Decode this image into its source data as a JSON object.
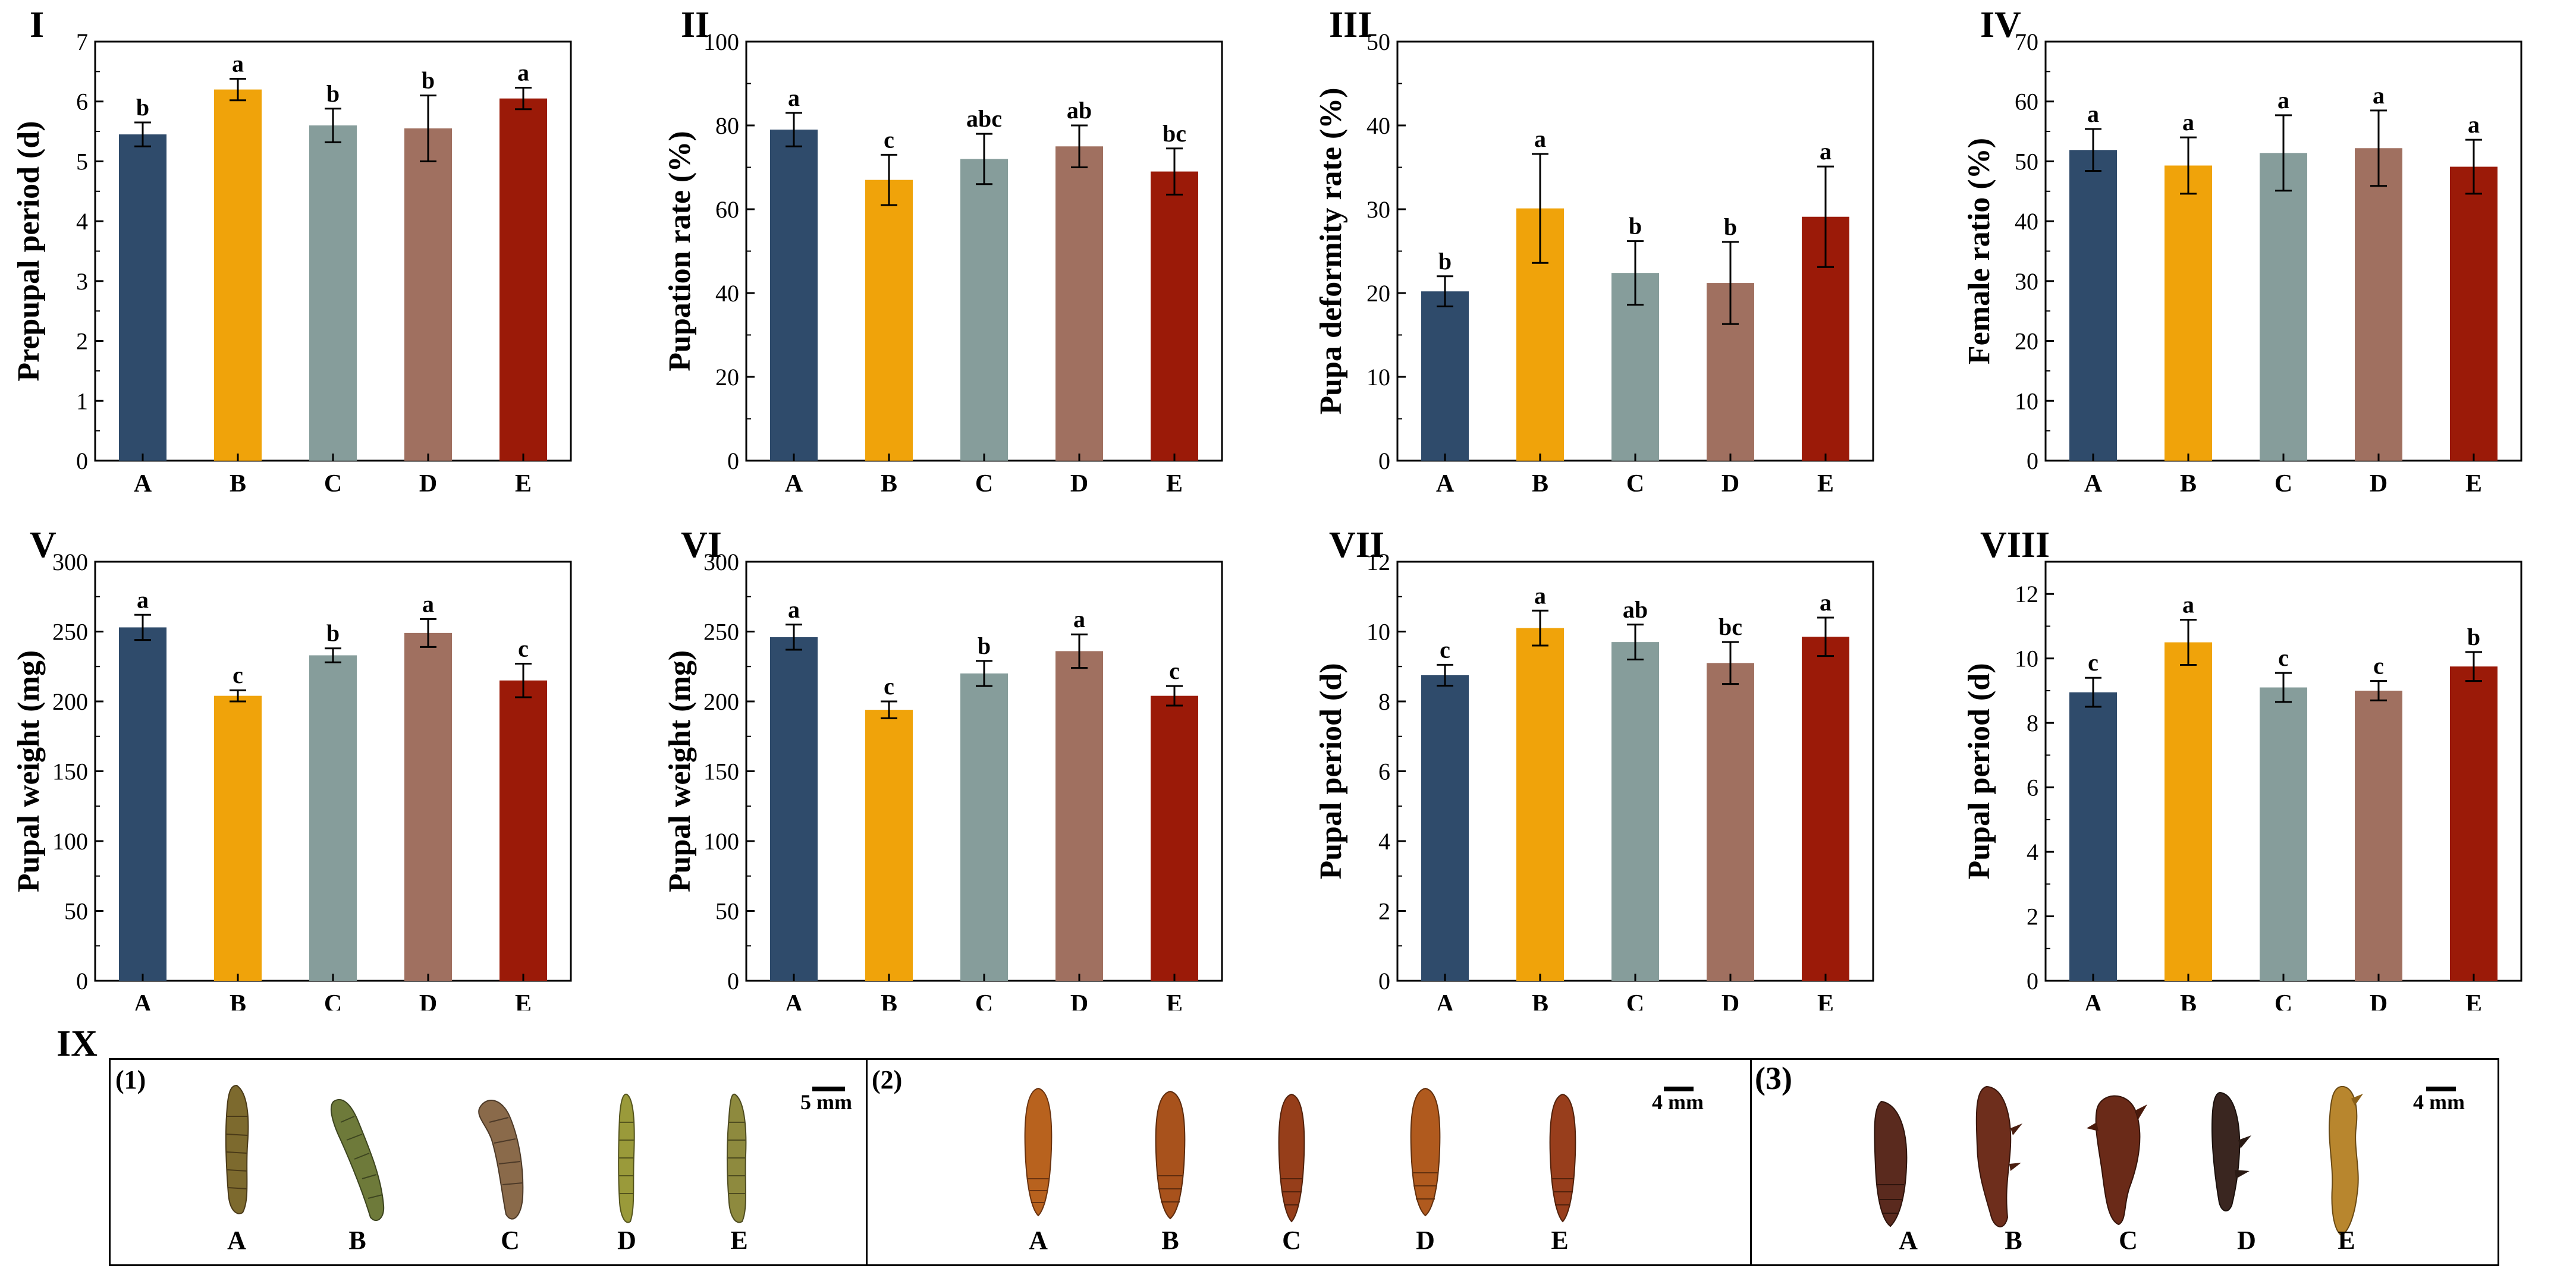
{
  "colors": {
    "A": "#2f4b6b",
    "B": "#f0a30a",
    "C": "#869d9b",
    "D": "#a07060",
    "E": "#9b1a08",
    "larva": "#7d7a3a",
    "pupa": "#8b3a1e",
    "deformed": "#5a2a1e"
  },
  "chart_data": [
    {
      "id": "I",
      "type": "bar",
      "title": "I",
      "xlabel": "",
      "ylabel": "Prepupal period (d)",
      "categories": [
        "A",
        "B",
        "C",
        "D",
        "E"
      ],
      "ylim": [
        0,
        7
      ],
      "yticks": [
        "0",
        "1",
        "2",
        "3",
        "4",
        "5",
        "6",
        "7"
      ],
      "values": [
        5.45,
        6.2,
        5.6,
        5.55,
        6.05
      ],
      "errors": [
        0.2,
        0.18,
        0.28,
        0.55,
        0.18
      ],
      "letters": [
        "b",
        "a",
        "b",
        "b",
        "a"
      ]
    },
    {
      "id": "II",
      "type": "bar",
      "title": "II",
      "xlabel": "",
      "ylabel": "Pupation rate (%)",
      "categories": [
        "A",
        "B",
        "C",
        "D",
        "E"
      ],
      "ylim": [
        0,
        100
      ],
      "yticks": [
        "0",
        "20",
        "40",
        "60",
        "80",
        "100"
      ],
      "values": [
        79,
        67,
        72,
        75,
        69
      ],
      "errors": [
        4,
        6,
        6,
        5,
        5.5
      ],
      "letters": [
        "a",
        "c",
        "abc",
        "ab",
        "bc"
      ]
    },
    {
      "id": "III",
      "type": "bar",
      "title": "III",
      "xlabel": "",
      "ylabel": "Pupa deformity rate (%)",
      "categories": [
        "A",
        "B",
        "C",
        "D",
        "E"
      ],
      "ylim": [
        0,
        50
      ],
      "yticks": [
        "0",
        "10",
        "20",
        "30",
        "40",
        "50"
      ],
      "values": [
        20.2,
        30.1,
        22.4,
        21.2,
        29.1
      ],
      "errors": [
        1.8,
        6.5,
        3.8,
        4.9,
        6
      ],
      "letters": [
        "b",
        "a",
        "b",
        "b",
        "a"
      ]
    },
    {
      "id": "IV",
      "type": "bar",
      "title": "IV",
      "xlabel": "",
      "ylabel": "Female ratio (%)",
      "categories": [
        "A",
        "B",
        "C",
        "D",
        "E"
      ],
      "ylim": [
        0,
        70
      ],
      "yticks": [
        "0",
        "10",
        "20",
        "30",
        "40",
        "50",
        "60",
        "70"
      ],
      "values": [
        51.9,
        49.3,
        51.4,
        52.2,
        49.1
      ],
      "errors": [
        3.5,
        4.7,
        6.3,
        6.3,
        4.5
      ],
      "letters": [
        "a",
        "a",
        "a",
        "a",
        "a"
      ]
    },
    {
      "id": "V",
      "type": "bar",
      "title": "V",
      "xlabel": "",
      "ylabel": "Pupal weight (mg)",
      "categories": [
        "A",
        "B",
        "C",
        "D",
        "E"
      ],
      "ylim": [
        0,
        300
      ],
      "yticks": [
        "0",
        "50",
        "100",
        "150",
        "200",
        "250",
        "300"
      ],
      "values": [
        253,
        204,
        233,
        249,
        215
      ],
      "errors": [
        9,
        4,
        5,
        10,
        12
      ],
      "letters": [
        "a",
        "c",
        "b",
        "a",
        "c"
      ]
    },
    {
      "id": "VI",
      "type": "bar",
      "title": "VI",
      "xlabel": "",
      "ylabel": "Pupal weight (mg)",
      "categories": [
        "A",
        "B",
        "C",
        "D",
        "E"
      ],
      "ylim": [
        0,
        300
      ],
      "yticks": [
        "0",
        "50",
        "100",
        "150",
        "200",
        "250",
        "300"
      ],
      "values": [
        246,
        194,
        220,
        236,
        204
      ],
      "errors": [
        9,
        6,
        9,
        12,
        7
      ],
      "letters": [
        "a",
        "c",
        "b",
        "a",
        "c"
      ]
    },
    {
      "id": "VII",
      "type": "bar",
      "title": "VII",
      "xlabel": "",
      "ylabel": "Pupal period (d)",
      "categories": [
        "A",
        "B",
        "C",
        "D",
        "E"
      ],
      "ylim": [
        0,
        12
      ],
      "yticks": [
        "0",
        "2",
        "4",
        "6",
        "8",
        "10",
        "12"
      ],
      "values": [
        8.75,
        10.1,
        9.7,
        9.1,
        9.85
      ],
      "errors": [
        0.3,
        0.5,
        0.5,
        0.6,
        0.55
      ],
      "letters": [
        "c",
        "a",
        "ab",
        "bc",
        "a"
      ]
    },
    {
      "id": "VIII",
      "type": "bar",
      "title": "VIII",
      "xlabel": "",
      "ylabel": "Pupal period (d)",
      "categories": [
        "A",
        "B",
        "C",
        "D",
        "E"
      ],
      "ylim": [
        0,
        13
      ],
      "yticks": [
        "0",
        "2",
        "4",
        "6",
        "8",
        "10",
        "12"
      ],
      "values": [
        8.95,
        10.5,
        9.1,
        9.0,
        9.75
      ],
      "errors": [
        0.45,
        0.7,
        0.45,
        0.3,
        0.45
      ],
      "letters": [
        "c",
        "a",
        "c",
        "c",
        "b"
      ]
    }
  ],
  "figure_ix": {
    "label": "IX",
    "sections": [
      {
        "num": "(1)",
        "scale": "5 mm",
        "kind": "larva",
        "labels": [
          "A",
          "B",
          "C",
          "D",
          "E"
        ]
      },
      {
        "num": "(2)",
        "scale": "4 mm",
        "kind": "pupa",
        "labels": [
          "A",
          "B",
          "C",
          "D",
          "E"
        ]
      },
      {
        "num": "(3)",
        "scale": "4 mm",
        "kind": "deformed",
        "labels": [
          "A",
          "B",
          "C",
          "D",
          "E"
        ]
      }
    ]
  }
}
